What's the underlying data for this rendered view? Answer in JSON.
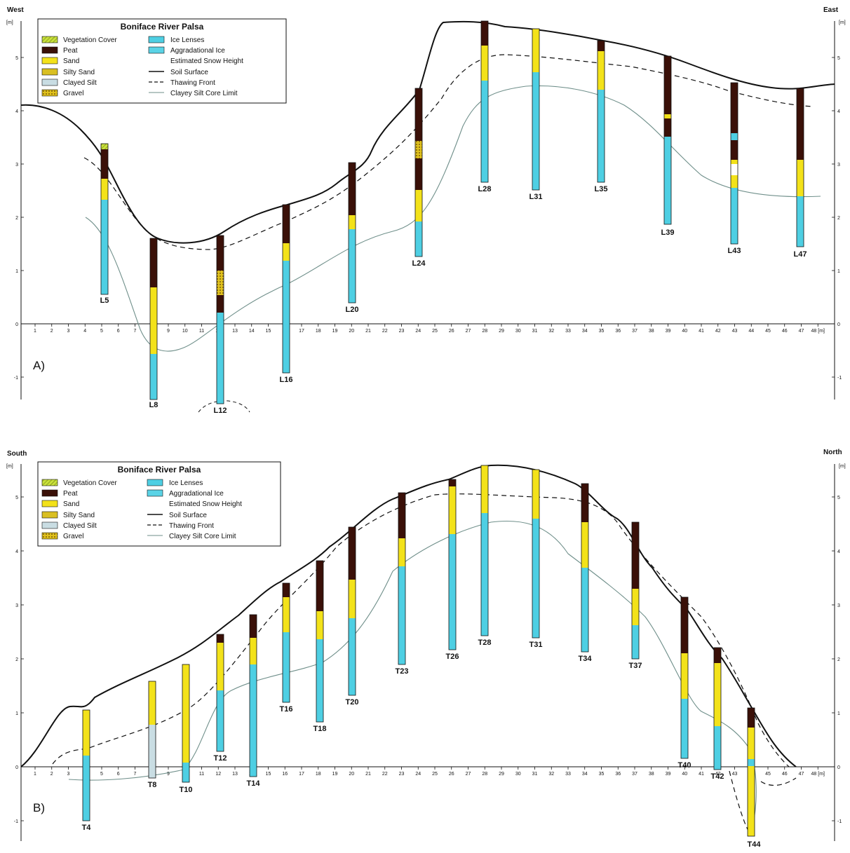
{
  "profiles": [
    {
      "id": "A",
      "panel_label": "A)",
      "left_direction": "West",
      "right_direction": "East",
      "axis_unit_left": "[m]",
      "axis_unit_right": "[m]",
      "axis_unit_bottom": "[m]",
      "y_ticks": [
        "5",
        "4",
        "3",
        "2",
        "1",
        "0",
        "-1"
      ],
      "x_ticks": [
        "1",
        "2",
        "3",
        "4",
        "5",
        "6",
        "7",
        "8",
        "9",
        "10",
        "11",
        "12",
        "13",
        "14",
        "15",
        "16",
        "17",
        "18",
        "19",
        "20",
        "21",
        "22",
        "23",
        "24",
        "25",
        "26",
        "27",
        "28",
        "29",
        "30",
        "31",
        "32",
        "33",
        "34",
        "35",
        "36",
        "37",
        "38",
        "39",
        "40",
        "41",
        "42",
        "43",
        "44",
        "45",
        "46",
        "47",
        "48"
      ],
      "x_last_tick_label": "48 [m]",
      "boreholes": [
        "L5",
        "L8",
        "L12",
        "L16",
        "L20",
        "L24",
        "L28",
        "L31",
        "L35",
        "L39",
        "L43",
        "L47"
      ],
      "legend": {
        "title": "Boniface River Palsa",
        "left_items": [
          {
            "label": "Vegetation Cover",
            "color": "#c8e03a",
            "pattern": "hatch"
          },
          {
            "label": "Peat",
            "color": "#3a1008"
          },
          {
            "label": "Sand",
            "color": "#f3e21a"
          },
          {
            "label": "Silty Sand",
            "color": "#d9bf22"
          },
          {
            "label": "Clayed Silt",
            "color": "#c9dde3"
          },
          {
            "label": "Gravel",
            "color": "#e0c21c",
            "pattern": "dots"
          }
        ],
        "right_items": [
          {
            "label": "Ice Lenses",
            "color": "#4ecfe3"
          },
          {
            "label": "Aggradational Ice",
            "color": "#5ad3e6"
          },
          {
            "label": "Estimated Snow Height",
            "line": "none"
          },
          {
            "label": "Soil Surface",
            "line": "solid-thick"
          },
          {
            "label": "Thawing Front",
            "line": "dashed"
          },
          {
            "label": "Clayey Silt Core Limit",
            "line": "thin"
          }
        ]
      }
    },
    {
      "id": "B",
      "panel_label": "B)",
      "left_direction": "South",
      "right_direction": "North",
      "axis_unit_left": "[m]",
      "axis_unit_right": "[m]",
      "axis_unit_bottom": "[m]",
      "y_ticks": [
        "5",
        "4",
        "3",
        "2",
        "1",
        "0",
        "-1"
      ],
      "x_ticks": [
        "1",
        "2",
        "3",
        "4",
        "5",
        "6",
        "7",
        "8",
        "9",
        "10",
        "11",
        "12",
        "13",
        "14",
        "15",
        "16",
        "17",
        "18",
        "19",
        "20",
        "21",
        "22",
        "23",
        "24",
        "25",
        "26",
        "27",
        "28",
        "29",
        "30",
        "31",
        "32",
        "33",
        "34",
        "35",
        "36",
        "37",
        "38",
        "39",
        "40",
        "41",
        "42",
        "43",
        "44",
        "45",
        "46",
        "47",
        "48"
      ],
      "x_last_tick_label": "48 [m]",
      "boreholes": [
        "T4",
        "T8",
        "T10",
        "T12",
        "T14",
        "T16",
        "T18",
        "T20",
        "T23",
        "T26",
        "T28",
        "T31",
        "T34",
        "T37",
        "T40",
        "T42",
        "T44"
      ],
      "legend": {
        "title": "Boniface River Palsa",
        "left_items": [
          {
            "label": "Vegetation Cover",
            "color": "#c8e03a",
            "pattern": "hatch"
          },
          {
            "label": "Peat",
            "color": "#3a1008"
          },
          {
            "label": "Sand",
            "color": "#f3e21a"
          },
          {
            "label": "Silty Sand",
            "color": "#d9bf22"
          },
          {
            "label": "Clayed Silt",
            "color": "#c9dde3"
          },
          {
            "label": "Gravel",
            "color": "#e0c21c",
            "pattern": "dots"
          }
        ],
        "right_items": [
          {
            "label": "Ice Lenses",
            "color": "#4ecfe3"
          },
          {
            "label": "Aggradational Ice",
            "color": "#5ad3e6"
          },
          {
            "label": "Estimated Snow Height",
            "line": "none"
          },
          {
            "label": "Soil Surface",
            "line": "solid-thick"
          },
          {
            "label": "Thawing Front",
            "line": "dashed"
          },
          {
            "label": "Clayey Silt Core Limit",
            "line": "thin"
          }
        ]
      }
    }
  ],
  "colors": {
    "peat": "#3a1008",
    "sand": "#f3e21a",
    "silty_sand": "#d9bf22",
    "clayed_silt": "#c9dde3",
    "ice": "#4ecfe3",
    "vegetation": "#c8e03a",
    "gravel": "#e0c21c",
    "outline": "#111111",
    "core_line": "#6f8f8a"
  }
}
